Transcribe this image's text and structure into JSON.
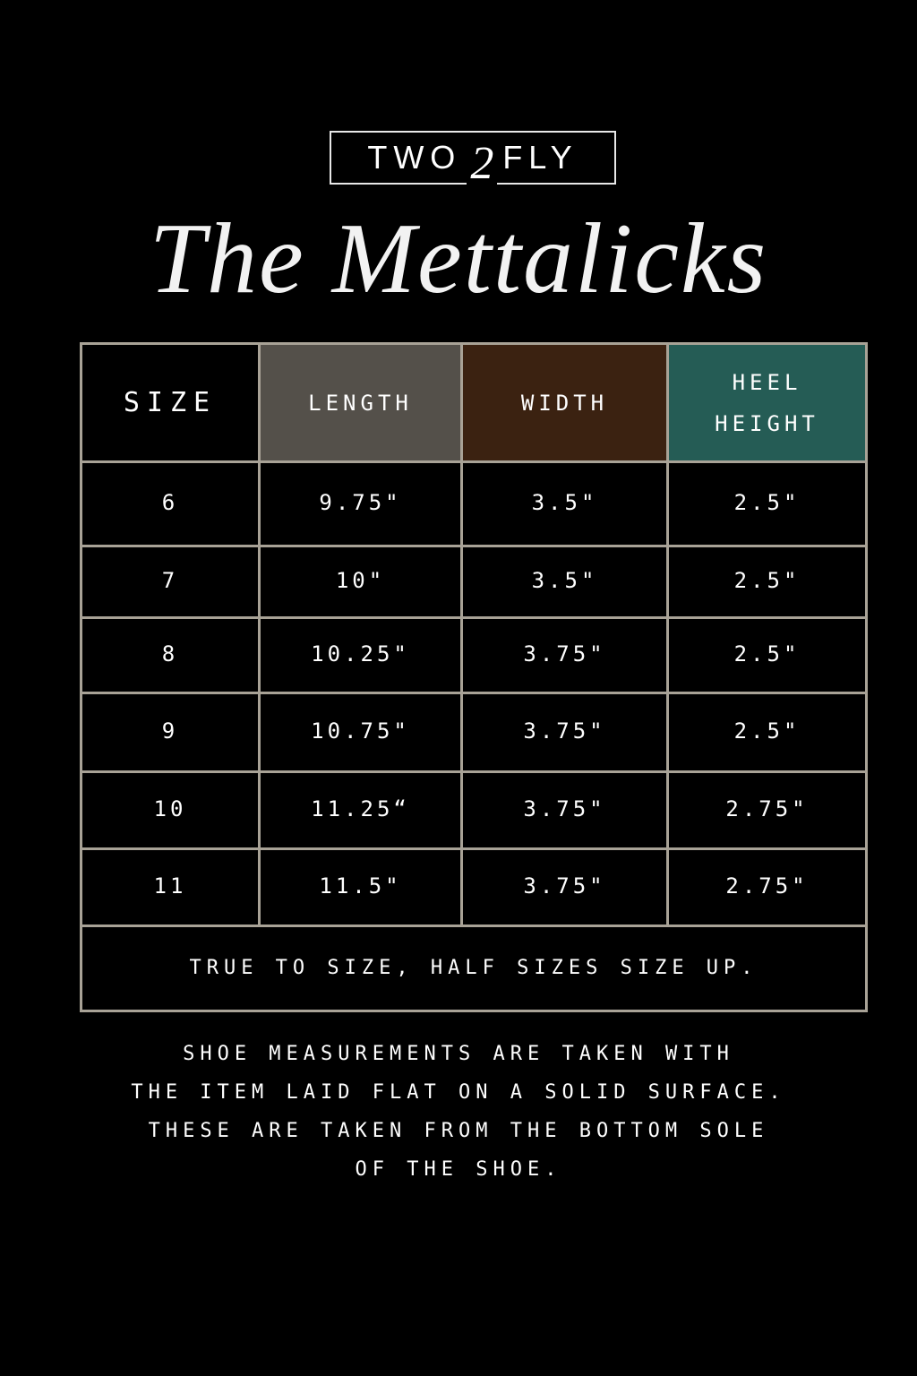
{
  "brand": {
    "logo_left": "TWO",
    "logo_mid": "2",
    "logo_right": "FLY"
  },
  "title": "The Mettalicks",
  "colors": {
    "background": "#000000",
    "grid": "#a8a296",
    "length_header": "#54504a",
    "width_header": "#3b2211",
    "heel_header": "#255c55"
  },
  "table": {
    "headers": [
      {
        "label": "SIZE",
        "color": "#000000"
      },
      {
        "label": "LENGTH",
        "color": "#54504a"
      },
      {
        "label": "WIDTH",
        "color": "#3b2211"
      },
      {
        "label": "HEEL HEIGHT",
        "line1": "HEEL",
        "line2": "HEIGHT",
        "color": "#255c55"
      }
    ],
    "rows": [
      [
        "6",
        "9.75\"",
        "3.5\"",
        "2.5\""
      ],
      [
        "7",
        "10\"",
        "3.5\"",
        "2.5\""
      ],
      [
        "8",
        "10.25\"",
        "3.75\"",
        "2.5\""
      ],
      [
        "9",
        "10.75\"",
        "3.75\"",
        "2.5\""
      ],
      [
        "10",
        "11.25“",
        "3.75\"",
        "2.75\""
      ],
      [
        "11",
        "11.5\"",
        "3.75\"",
        "2.75\""
      ]
    ],
    "footer": "TRUE TO SIZE, HALF SIZES SIZE UP."
  },
  "note": [
    "SHOE MEASUREMENTS ARE TAKEN WITH",
    "THE ITEM LAID FLAT ON A SOLID SURFACE.",
    "THESE ARE TAKEN FROM THE BOTTOM SOLE",
    "OF THE SHOE."
  ]
}
